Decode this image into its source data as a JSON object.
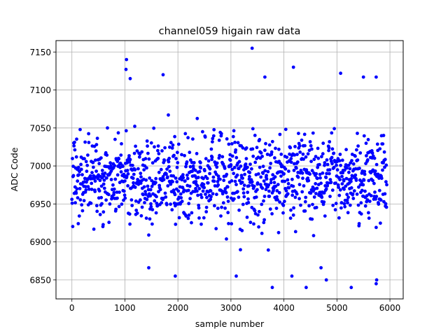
{
  "chart_data": {
    "type": "scatter",
    "title": "channel059 higain raw data",
    "xlabel": "sample number",
    "ylabel": "ADC Code",
    "xlim": [
      -300,
      6250
    ],
    "ylim": [
      6825,
      7165
    ],
    "x_ticks": [
      0,
      1000,
      2000,
      3000,
      4000,
      5000,
      6000
    ],
    "y_ticks": [
      6850,
      6900,
      6950,
      7000,
      7050,
      7100,
      7150
    ],
    "grid": true,
    "marker_color": "#0000ff",
    "series": [
      {
        "x_start": 0,
        "x_end": 5940,
        "x_step": 5,
        "y_center": 6985,
        "y_spread": 28,
        "y_min": 6840,
        "y_max": 7155,
        "notable_points": [
          {
            "x": 1030,
            "y": 7140
          },
          {
            "x": 1020,
            "y": 7127
          },
          {
            "x": 1100,
            "y": 7115
          },
          {
            "x": 1720,
            "y": 7120
          },
          {
            "x": 3400,
            "y": 7155
          },
          {
            "x": 4180,
            "y": 7130
          },
          {
            "x": 3640,
            "y": 7117
          },
          {
            "x": 5070,
            "y": 7122
          },
          {
            "x": 5500,
            "y": 7117
          },
          {
            "x": 5740,
            "y": 7117
          },
          {
            "x": 1950,
            "y": 6855
          },
          {
            "x": 3100,
            "y": 6855
          },
          {
            "x": 3780,
            "y": 6840
          },
          {
            "x": 4150,
            "y": 6855
          },
          {
            "x": 4420,
            "y": 6840
          },
          {
            "x": 4800,
            "y": 6850
          },
          {
            "x": 5270,
            "y": 6840
          },
          {
            "x": 5740,
            "y": 6845
          },
          {
            "x": 5750,
            "y": 6850
          },
          {
            "x": 1450,
            "y": 6866
          },
          {
            "x": 4700,
            "y": 6866
          }
        ]
      }
    ]
  }
}
